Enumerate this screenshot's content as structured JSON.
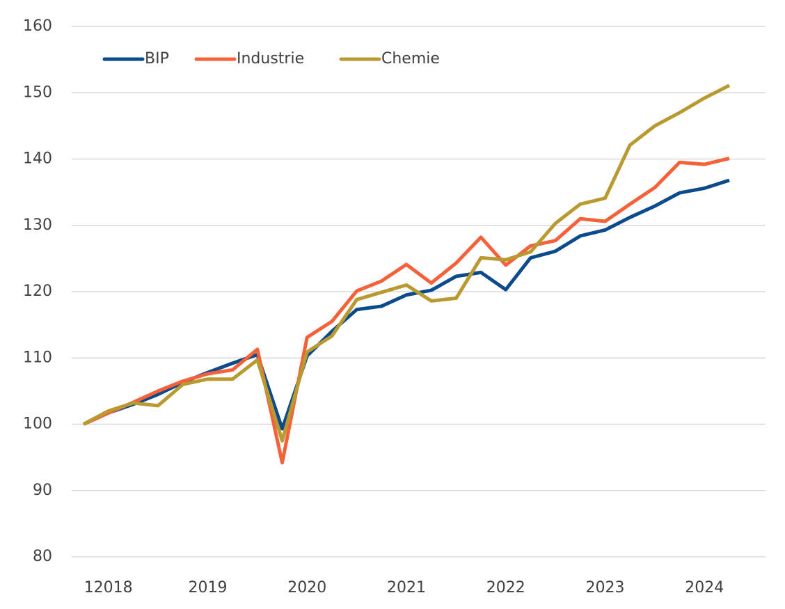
{
  "chart_data": {
    "type": "line",
    "categories": [
      null,
      "12018",
      null,
      null,
      null,
      "2019",
      null,
      null,
      null,
      "2020",
      null,
      null,
      null,
      "2021",
      null,
      null,
      null,
      "2022",
      null,
      null,
      null,
      "2023",
      null,
      null,
      null,
      "2024",
      null
    ],
    "series": [
      {
        "name": "BIP",
        "color": "#0b4a8c",
        "values": [
          100,
          101.7,
          103.0,
          104.5,
          106.3,
          107.8,
          109.2,
          110.5,
          99.3,
          110.3,
          114.0,
          117.3,
          117.8,
          119.5,
          120.2,
          122.3,
          122.9,
          120.3,
          125.1,
          126.1,
          128.4,
          129.3,
          131.2,
          132.9,
          134.9,
          135.6,
          136.8
        ]
      },
      {
        "name": "Industrie",
        "color": "#f5623a",
        "values": [
          100,
          101.7,
          103.3,
          105.0,
          106.5,
          107.6,
          108.2,
          111.3,
          94.2,
          113.1,
          115.5,
          120.1,
          121.6,
          124.1,
          121.3,
          124.3,
          128.2,
          124.0,
          126.9,
          127.7,
          131.0,
          130.6,
          133.2,
          135.7,
          139.5,
          139.2,
          140.1
        ]
      },
      {
        "name": "Chemie",
        "color": "#b99a30",
        "values": [
          100,
          102.0,
          103.2,
          102.8,
          106.0,
          106.8,
          106.8,
          109.7,
          97.5,
          110.9,
          113.3,
          118.8,
          119.9,
          121.0,
          118.6,
          119.0,
          125.1,
          124.8,
          126.0,
          130.3,
          133.2,
          134.1,
          142.1,
          145.0,
          147.0,
          149.2,
          151.1
        ]
      }
    ],
    "ylim": [
      80,
      160
    ],
    "yticks": [
      80,
      90,
      100,
      110,
      120,
      130,
      140,
      150,
      160
    ],
    "grid": true,
    "legend": "top-left"
  }
}
